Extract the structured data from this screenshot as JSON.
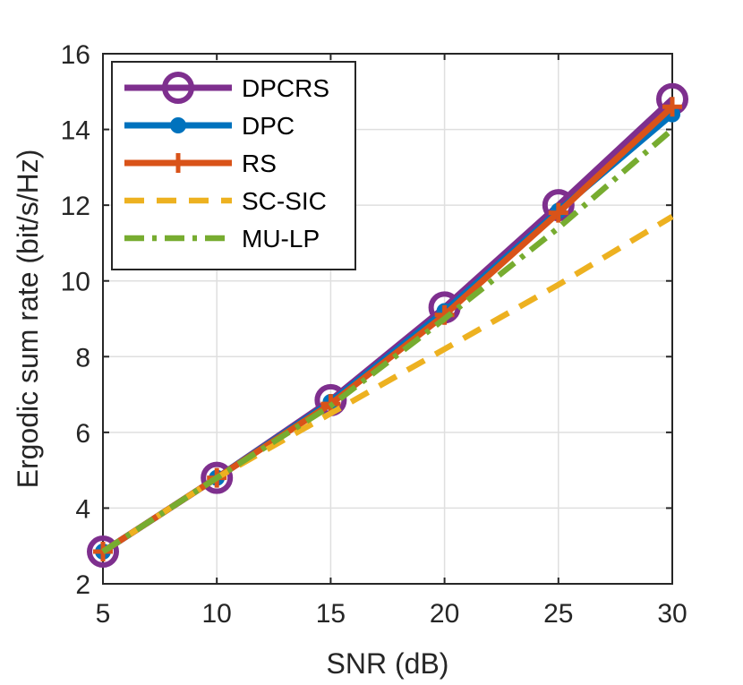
{
  "chart_data": {
    "type": "line",
    "title": "",
    "xlabel": "SNR (dB)",
    "ylabel": "Ergodic sum rate (bit/s/Hz)",
    "x": [
      5,
      10,
      15,
      20,
      25,
      30
    ],
    "xlim": [
      5,
      30
    ],
    "ylim": [
      2,
      16
    ],
    "xticks": [
      5,
      10,
      15,
      20,
      25,
      30
    ],
    "yticks": [
      2,
      4,
      6,
      8,
      10,
      12,
      14,
      16
    ],
    "grid": true,
    "legend_position": "top-left",
    "series": [
      {
        "name": "DPCRS",
        "values": [
          2.85,
          4.8,
          6.85,
          9.3,
          12.0,
          14.8
        ],
        "color": "#7E2F8E",
        "style": "solid",
        "marker": "circle"
      },
      {
        "name": "DPC",
        "values": [
          2.85,
          4.8,
          6.8,
          9.2,
          11.85,
          14.4
        ],
        "color": "#0072BD",
        "style": "solid",
        "marker": "dot"
      },
      {
        "name": "RS",
        "values": [
          2.85,
          4.8,
          6.75,
          9.1,
          11.8,
          14.6
        ],
        "color": "#D95319",
        "style": "solid",
        "marker": "plus"
      },
      {
        "name": "SC-SIC",
        "values": [
          2.85,
          4.8,
          6.5,
          8.2,
          9.9,
          11.7
        ],
        "color": "#EDB120",
        "style": "dashed",
        "marker": "none"
      },
      {
        "name": "MU-LP",
        "values": [
          2.85,
          4.8,
          6.7,
          9.0,
          11.4,
          14.0
        ],
        "color": "#77AC30",
        "style": "dashdot",
        "marker": "none"
      }
    ]
  }
}
